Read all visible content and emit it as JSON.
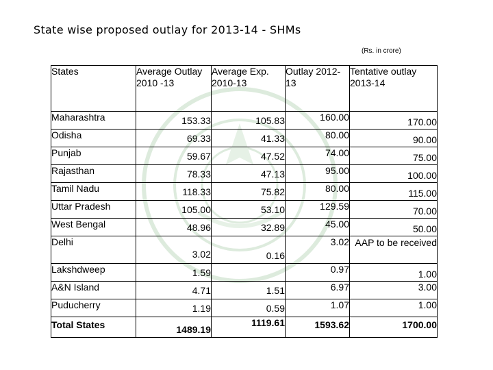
{
  "title": "State wise proposed outlay for 2013-14 - SHMs",
  "unit_note": "(Rs. in crore)",
  "table": {
    "headers": [
      "States",
      "Average Outlay 2010 -13",
      "Average Exp. 2010-13",
      "Outlay 2012-13",
      "Tentative outlay 2013-14"
    ],
    "rows": [
      {
        "state": "Maharashtra",
        "avg_outlay": "153.33",
        "avg_exp": "105.83",
        "outlay_2012": "160.00",
        "tentative": "170.00"
      },
      {
        "state": "Odisha",
        "avg_outlay": "69.33",
        "avg_exp": "41.33",
        "outlay_2012": "80.00",
        "tentative": "90.00"
      },
      {
        "state": "Punjab",
        "avg_outlay": "59.67",
        "avg_exp": "47.52",
        "outlay_2012": "74.00",
        "tentative": "75.00"
      },
      {
        "state": "Rajasthan",
        "avg_outlay": "78.33",
        "avg_exp": "47.13",
        "outlay_2012": "95.00",
        "tentative": "100.00"
      },
      {
        "state": "Tamil Nadu",
        "avg_outlay": "118.33",
        "avg_exp": "75.82",
        "outlay_2012": "80.00",
        "tentative": "115.00"
      },
      {
        "state": "Uttar Pradesh",
        "avg_outlay": "105.00",
        "avg_exp": "53.10",
        "outlay_2012": "129.59",
        "tentative": "70.00"
      },
      {
        "state": "West Bengal",
        "avg_outlay": "48.96",
        "avg_exp": "32.89",
        "outlay_2012": "45.00",
        "tentative": "50.00"
      },
      {
        "state": "Delhi",
        "avg_outlay": "3.02",
        "avg_exp": "0.16",
        "outlay_2012": "3.02",
        "tentative": "AAP to be received"
      },
      {
        "state": "Lakshdweep",
        "avg_outlay": "1.59",
        "avg_exp": "",
        "outlay_2012": "0.97",
        "tentative": "1.00"
      },
      {
        "state": "A&N Island",
        "avg_outlay": "4.71",
        "avg_exp": "1.51",
        "outlay_2012": "6.97",
        "tentative": "3.00"
      },
      {
        "state": "Puducherry",
        "avg_outlay": "1.19",
        "avg_exp": "0.59",
        "outlay_2012": "1.07",
        "tentative": "1.00"
      }
    ],
    "total": {
      "state": "Total States",
      "avg_outlay": "1489.19",
      "avg_exp": "1119.61",
      "outlay_2012": "1593.62",
      "tentative": "1700.00"
    }
  }
}
